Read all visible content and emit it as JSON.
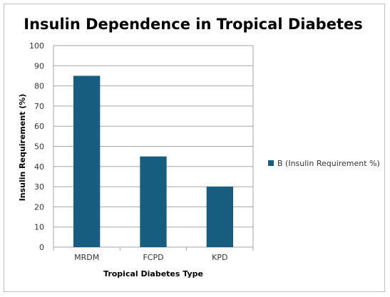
{
  "chart_data": {
    "type": "bar",
    "title": "Insulin Dependence in Tropical Diabetes",
    "xlabel": "Tropical Diabetes Type",
    "ylabel": "Insulin Requirement (%)",
    "categories": [
      "MRDM",
      "FCPD",
      "KPD"
    ],
    "series": [
      {
        "name": "B (Insulin Requirement %)",
        "values": [
          85,
          45,
          30
        ],
        "color": "#175d80"
      }
    ],
    "ylim": [
      0,
      100
    ],
    "yticks": [
      "0",
      "10",
      "20",
      "30",
      "40",
      "50",
      "60",
      "70",
      "80",
      "90",
      "100"
    ],
    "grid": true,
    "legend_position": "right"
  }
}
